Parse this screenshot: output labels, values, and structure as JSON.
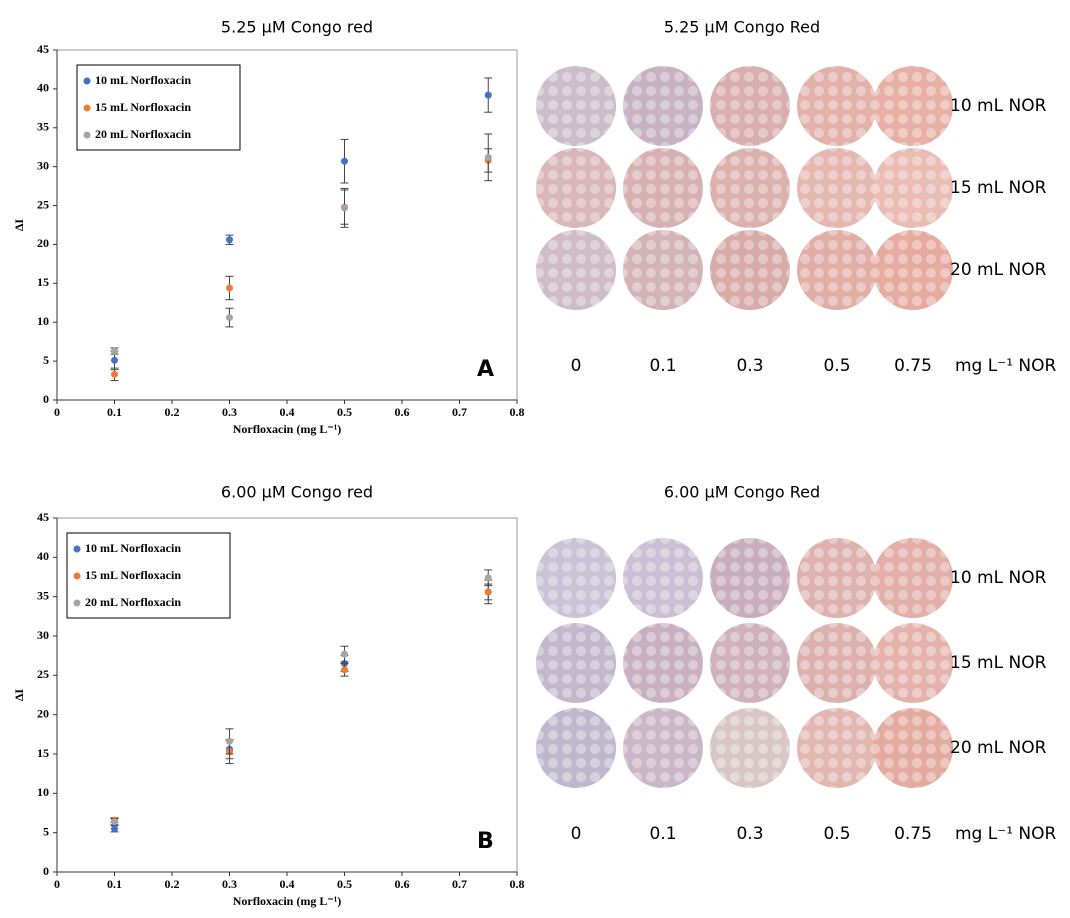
{
  "chart_data": [
    {
      "type": "scatter",
      "title": "5.25 µM Congo red",
      "x_label": "Norfloxacin (mg L⁻¹)",
      "y_label": "ΔI",
      "annotation": "A",
      "xlim": [
        0,
        0.8
      ],
      "xticks": [
        0,
        0.1,
        0.2,
        0.3,
        0.4,
        0.5,
        0.6,
        0.7,
        0.8
      ],
      "ylim": [
        0,
        45
      ],
      "yticks": [
        0,
        5,
        10,
        15,
        20,
        25,
        30,
        35,
        40,
        45
      ],
      "legend": "upper left",
      "series": [
        {
          "name": "10 mL Norfloxacin",
          "color": "#4472c4",
          "x": [
            0.1,
            0.3,
            0.5,
            0.75
          ],
          "values": [
            5.1,
            20.6,
            30.7,
            39.2
          ],
          "errors": [
            1.2,
            0.6,
            2.8,
            2.2
          ]
        },
        {
          "name": "15 mL Norfloxacin",
          "color": "#ed7d31",
          "x": [
            0.1,
            0.3,
            0.5,
            0.75
          ],
          "values": [
            3.3,
            14.4,
            24.8,
            30.8
          ],
          "errors": [
            0.8,
            1.5,
            2.2,
            1.5
          ]
        },
        {
          "name": "20 mL Norfloxacin",
          "color": "#a5a5a5",
          "x": [
            0.1,
            0.3,
            0.5,
            0.75
          ],
          "values": [
            6.3,
            10.6,
            24.7,
            31.2
          ],
          "errors": [
            0.4,
            1.2,
            2.5,
            3.0
          ]
        }
      ]
    },
    {
      "type": "scatter",
      "title": "6.00 µM Congo red",
      "x_label": "Norfloxacin (mg L⁻¹)",
      "y_label": "ΔI",
      "annotation": "B",
      "xlim": [
        0,
        0.8
      ],
      "xticks": [
        0,
        0.1,
        0.2,
        0.3,
        0.4,
        0.5,
        0.6,
        0.7,
        0.8
      ],
      "ylim": [
        0,
        45
      ],
      "yticks": [
        0,
        5,
        10,
        15,
        20,
        25,
        30,
        35,
        40,
        45
      ],
      "legend": "upper left",
      "series": [
        {
          "name": "10 mL Norfloxacin",
          "color": "#4472c4",
          "x": [
            0.1,
            0.3,
            0.5,
            0.75
          ],
          "values": [
            5.5,
            15.6,
            26.5,
            35.6
          ],
          "errors": [
            0.4,
            1.2,
            1.0,
            1.0
          ]
        },
        {
          "name": "15 mL Norfloxacin",
          "color": "#ed7d31",
          "x": [
            0.1,
            0.3,
            0.5,
            0.75
          ],
          "values": [
            6.6,
            15.3,
            25.7,
            35.6
          ],
          "errors": [
            0.3,
            1.5,
            0.8,
            1.5
          ]
        },
        {
          "name": "20 mL Norfloxacin",
          "color": "#a5a5a5",
          "x": [
            0.1,
            0.3,
            0.5,
            0.75
          ],
          "values": [
            6.4,
            16.6,
            27.7,
            37.4
          ],
          "errors": [
            0.4,
            1.6,
            1.0,
            1.0
          ]
        }
      ]
    }
  ],
  "photo_panels": [
    {
      "title": "5.25 µM Congo Red",
      "rows": [
        "10 mL NOR",
        "15 mL NOR",
        "20 mL NOR"
      ],
      "columns": [
        "0",
        "0.1",
        "0.3",
        "0.5",
        "0.75"
      ],
      "unit": "mg L⁻¹ NOR"
    },
    {
      "title": "6.00 µM Congo Red",
      "rows": [
        "10 mL NOR",
        "15 mL NOR",
        "20 mL NOR"
      ],
      "columns": [
        "0",
        "0.1",
        "0.3",
        "0.5",
        "0.75"
      ],
      "unit": "mg L⁻¹ NOR"
    }
  ]
}
